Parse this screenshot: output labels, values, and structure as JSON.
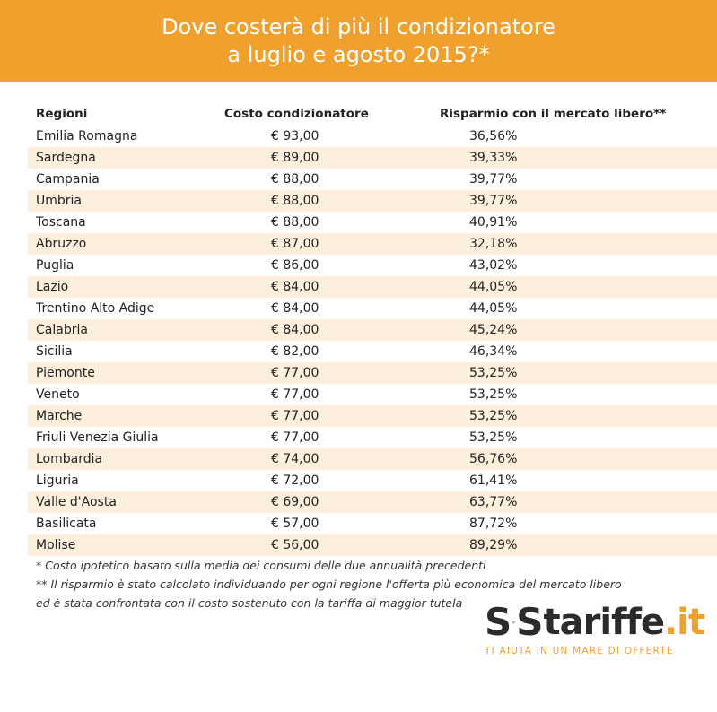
{
  "header": {
    "title_line1": "Dove costerà di più il condizionatore",
    "title_line2": "a luglio e agosto 2015?*"
  },
  "table": {
    "columns": [
      "Regioni",
      "Costo condizionatore",
      "Risparmio con il mercato libero**"
    ],
    "rows": [
      [
        "Emilia Romagna",
        "€ 93,00",
        "36,56%"
      ],
      [
        "Sardegna",
        "€ 89,00",
        "39,33%"
      ],
      [
        "Campania",
        "€ 88,00",
        "39,77%"
      ],
      [
        "Umbria",
        "€ 88,00",
        "39,77%"
      ],
      [
        "Toscana",
        "€ 88,00",
        "40,91%"
      ],
      [
        "Abruzzo",
        "€ 87,00",
        "32,18%"
      ],
      [
        "Puglia",
        "€ 86,00",
        "43,02%"
      ],
      [
        "Lazio",
        "€ 84,00",
        "44,05%"
      ],
      [
        "Trentino Alto Adige",
        "€ 84,00",
        "44,05%"
      ],
      [
        "Calabria",
        "€ 84,00",
        "45,24%"
      ],
      [
        "Sicilia",
        "€ 82,00",
        "46,34%"
      ],
      [
        "Piemonte",
        "€ 77,00",
        "53,25%"
      ],
      [
        "Veneto",
        "€ 77,00",
        "53,25%"
      ],
      [
        "Marche",
        "€ 77,00",
        "53,25%"
      ],
      [
        "Friuli Venezia Giulia",
        "€ 77,00",
        "53,25%"
      ],
      [
        "Lombardia",
        "€ 74,00",
        "56,76%"
      ],
      [
        "Liguria",
        "€ 72,00",
        "61,41%"
      ],
      [
        "Valle d'Aosta",
        "€ 69,00",
        "63,77%"
      ],
      [
        "Basilicata",
        "€ 57,00",
        "87,72%"
      ],
      [
        "Molise",
        "€ 56,00",
        "89,29%"
      ]
    ]
  },
  "footnotes": [
    "* Costo ipotetico basato sulla media dei consumi delle due annualità precedenti",
    "** Il risparmio è stato calcolato individuando per ogni regione l'offerta più economica del mercato libero",
    "ed è stata confrontata con il costo sostenuto con la tariffa di maggior tutela"
  ],
  "logo": {
    "brand_letter_1": "S",
    "brand_letter_2": "S",
    "brand_word": "tariffe",
    "brand_tld": ".it",
    "tagline": "TI AIUTA IN UN MARE DI OFFERTE",
    "icon": "lifebuoy-icon"
  },
  "colors": {
    "accent": "#f0a02c",
    "row_shade": "#fcefdc",
    "text": "#222222"
  }
}
